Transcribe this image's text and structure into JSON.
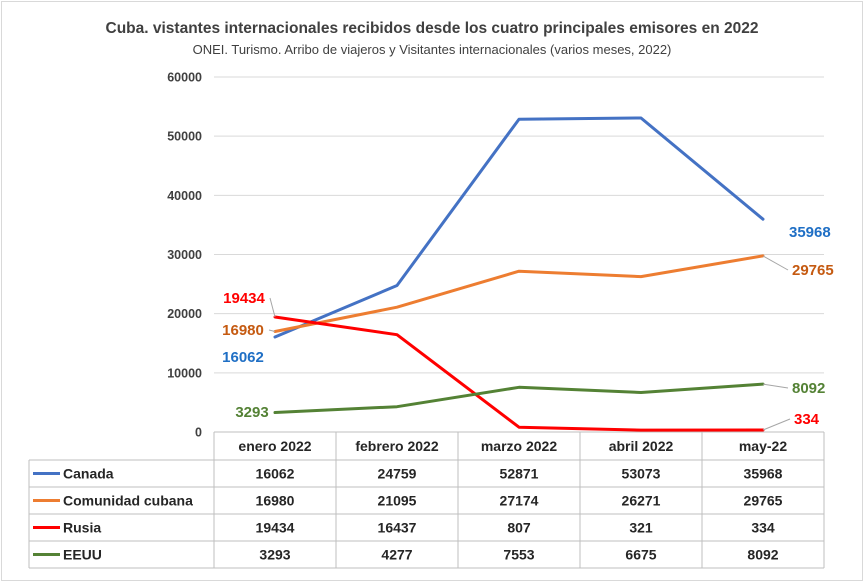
{
  "chart_data": {
    "type": "line",
    "title": "Cuba. vistantes internacionales recibidos desde los cuatro principales emisores en 2022",
    "subtitle": "ONEI. Turismo. Arribo de viajeros y Visitantes internacionales (varios meses, 2022)",
    "categories": [
      "enero 2022",
      "febrero 2022",
      "marzo 2022",
      "abril 2022",
      "may-22"
    ],
    "ylim": [
      0,
      60000
    ],
    "yticks": [
      "0",
      "10000",
      "20000",
      "30000",
      "40000",
      "50000",
      "60000"
    ],
    "grid": true,
    "legend": "data-table",
    "series": [
      {
        "name": "Canada",
        "color": "#4472c4",
        "label_color": "#1f6fc5",
        "values": [
          16062,
          24759,
          52871,
          53073,
          35968
        ],
        "table": [
          "16062",
          "24759",
          "52871",
          "53073",
          "35968"
        ],
        "labels": [
          "16062",
          "35968"
        ]
      },
      {
        "name": "Comunidad cubana",
        "color": "#ed7d31",
        "label_color": "#c55a11",
        "values": [
          16980,
          21095,
          27174,
          26271,
          29765
        ],
        "table": [
          "16980",
          "21095",
          "27174",
          "26271",
          "29765"
        ],
        "labels": [
          "16980",
          "29765"
        ]
      },
      {
        "name": "Rusia",
        "color": "#ff0000",
        "label_color": "#ff0000",
        "values": [
          19434,
          16437,
          807,
          321,
          334
        ],
        "table": [
          "19434",
          "16437",
          "807",
          "321",
          "334"
        ],
        "labels": [
          "19434",
          "334"
        ]
      },
      {
        "name": "EEUU",
        "color": "#548235",
        "label_color": "#548235",
        "values": [
          3293,
          4277,
          7553,
          6675,
          8092
        ],
        "table": [
          "3293",
          "4277",
          "7553",
          "6675",
          "8092"
        ],
        "labels": [
          "3293",
          "8092"
        ]
      }
    ]
  }
}
